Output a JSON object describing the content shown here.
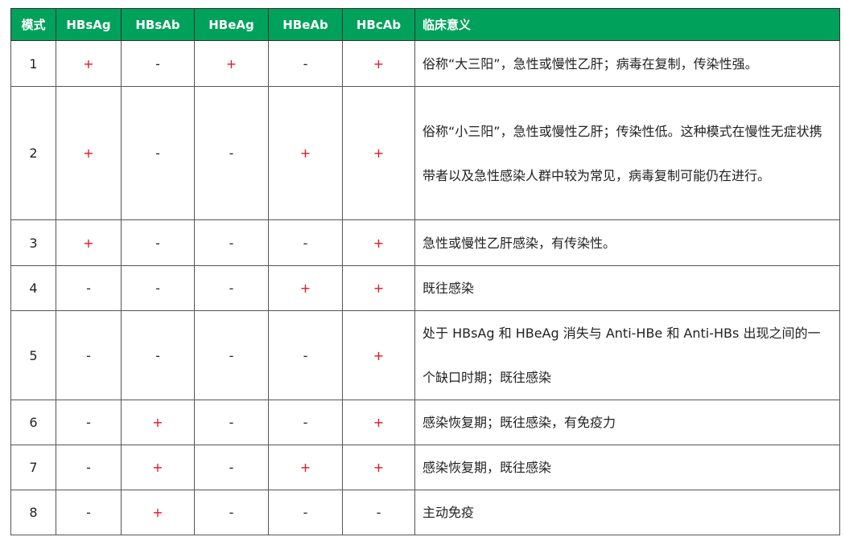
{
  "headers": [
    "模式",
    "HBsAg",
    "HBsAb",
    "HBeAg",
    "HBeAb",
    "HBcAb",
    "临床意义"
  ],
  "colors": {
    "header_bg": "#00a15b",
    "positive": "#e8141c"
  },
  "rows": [
    {
      "mode": "1",
      "marks": [
        "+",
        "-",
        "+",
        "-",
        "+"
      ],
      "meaning": "俗称“大三阳”，急性或慢性乙肝；病毒在复制，传染性强。"
    },
    {
      "mode": "2",
      "marks": [
        "+",
        "-",
        "-",
        "+",
        "+"
      ],
      "meaning": "俗称“小三阳”，急性或慢性乙肝；传染性低。这种模式在慢性无症状携带者以及急性感染人群中较为常见，病毒复制可能仍在进行。"
    },
    {
      "mode": "3",
      "marks": [
        "+",
        "-",
        "-",
        "-",
        "+"
      ],
      "meaning": "急性或慢性乙肝感染，有传染性。"
    },
    {
      "mode": "4",
      "marks": [
        "-",
        "-",
        "-",
        "+",
        "+"
      ],
      "meaning": "既往感染"
    },
    {
      "mode": "5",
      "marks": [
        "-",
        "-",
        "-",
        "-",
        "+"
      ],
      "meaning": "处于 HBsAg 和 HBeAg 消失与 Anti-HBe 和 Anti-HBs 出现之间的一个缺口时期；既往感染"
    },
    {
      "mode": "6",
      "marks": [
        "-",
        "+",
        "-",
        "-",
        "+"
      ],
      "meaning": "感染恢复期；既往感染，有免疫力"
    },
    {
      "mode": "7",
      "marks": [
        "-",
        "+",
        "-",
        "+",
        "+"
      ],
      "meaning": "感染恢复期，既往感染"
    },
    {
      "mode": "8",
      "marks": [
        "-",
        "+",
        "-",
        "-",
        "-"
      ],
      "meaning": "主动免疫"
    }
  ]
}
